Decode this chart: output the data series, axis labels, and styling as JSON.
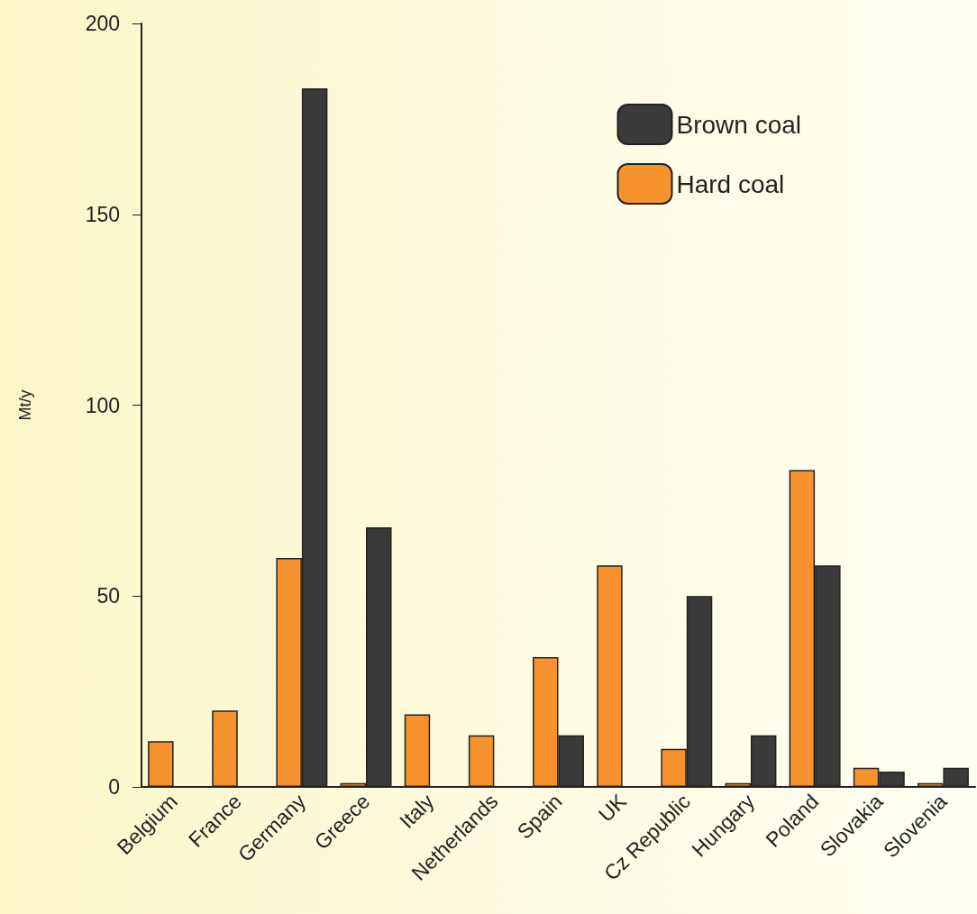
{
  "chart_data": {
    "type": "bar",
    "ylabel": "Mt/y",
    "categories": [
      "Belgium",
      "France",
      "Germany",
      "Greece",
      "Italy",
      "Netherlands",
      "Spain",
      "UK",
      "Cz Republic",
      "Hungary",
      "Poland",
      "Slovakia",
      "Slovenia"
    ],
    "series": [
      {
        "name": "Hard coal",
        "color": "#f7932f",
        "values": [
          12,
          20,
          60,
          1,
          19,
          13.5,
          34,
          58,
          10,
          1,
          83,
          5,
          1
        ]
      },
      {
        "name": "Brown coal",
        "color": "#3a3a3a",
        "values": [
          null,
          null,
          183,
          68,
          null,
          null,
          13.5,
          null,
          50,
          13.5,
          58,
          4,
          5
        ]
      }
    ],
    "ylim": [
      0,
      200
    ],
    "yticks": [
      0,
      50,
      100,
      150,
      200
    ],
    "grid": false,
    "legend": "top right"
  }
}
